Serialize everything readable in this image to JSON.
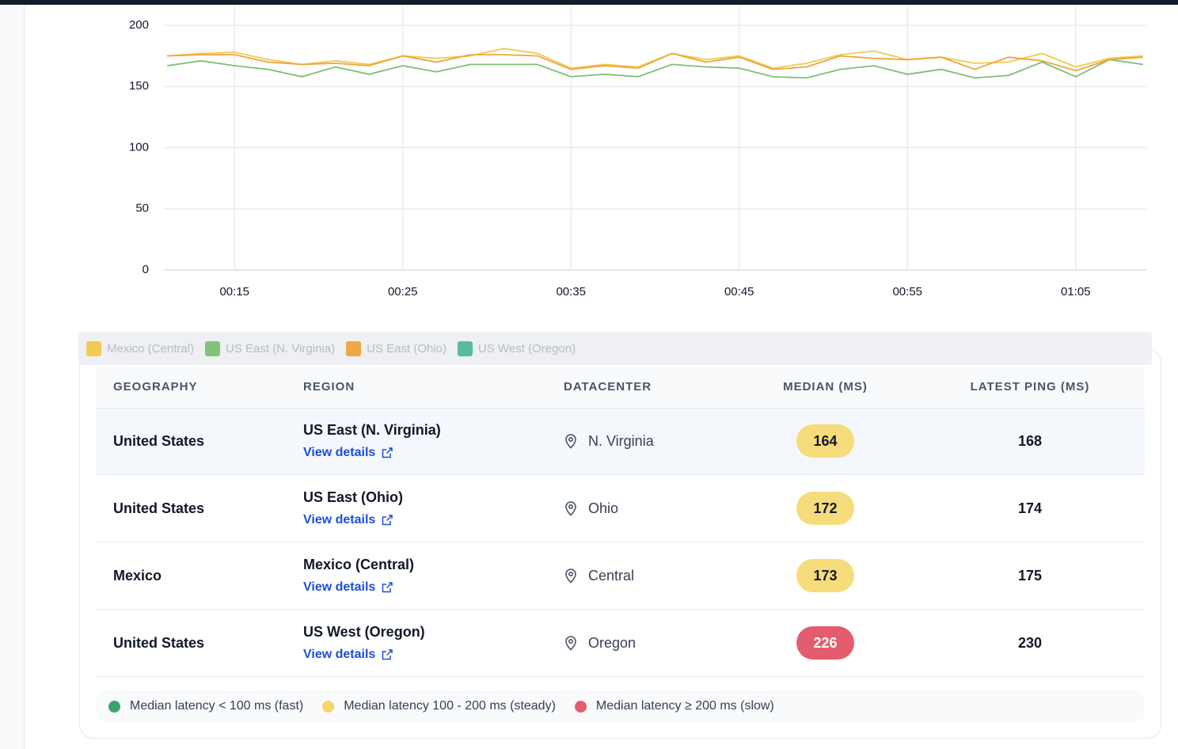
{
  "chart_data": {
    "type": "line",
    "x": [
      11,
      13,
      15,
      17,
      19,
      21,
      23,
      25,
      27,
      29,
      31,
      33,
      35,
      37,
      39,
      41,
      43,
      45,
      47,
      49,
      51,
      53,
      55,
      57,
      59,
      61,
      63,
      65,
      67,
      69
    ],
    "xlim": [
      10.8,
      69.2
    ],
    "xticks": [
      {
        "value": 15,
        "label": "00:15"
      },
      {
        "value": 25,
        "label": "00:25"
      },
      {
        "value": 35,
        "label": "00:35"
      },
      {
        "value": 45,
        "label": "00:45"
      },
      {
        "value": 55,
        "label": "00:55"
      },
      {
        "value": 65,
        "label": "01:05"
      }
    ],
    "ylim": [
      0,
      200
    ],
    "yticks": [
      0,
      50,
      100,
      150,
      200
    ],
    "grid": true,
    "series": [
      {
        "name": "Mexico (Central)",
        "color": "#f2c94c",
        "values": [
          175,
          177,
          178,
          172,
          168,
          171,
          168,
          175,
          173,
          175,
          181,
          177,
          165,
          168,
          166,
          177,
          172,
          175,
          165,
          169,
          176,
          179,
          172,
          174,
          169,
          170,
          177,
          166,
          173,
          175
        ]
      },
      {
        "name": "US East (N. Virginia)",
        "color": "#7dbf75",
        "values": [
          167,
          171,
          167,
          164,
          158,
          166,
          160,
          167,
          162,
          168,
          168,
          168,
          158,
          160,
          158,
          168,
          166,
          165,
          158,
          157,
          164,
          167,
          160,
          164,
          157,
          159,
          170,
          158,
          172,
          168
        ]
      },
      {
        "name": "US East (Ohio)",
        "color": "#f0a43a",
        "values": [
          175,
          176,
          176,
          170,
          168,
          169,
          167,
          175,
          170,
          176,
          176,
          175,
          164,
          167,
          165,
          177,
          170,
          174,
          164,
          166,
          175,
          173,
          172,
          174,
          164,
          174,
          171,
          163,
          172,
          174
        ]
      },
      {
        "name": "US West (Oregon)",
        "color": "#4fb89a",
        "values": [
          null,
          null,
          null,
          null,
          null,
          null,
          null,
          null,
          null,
          null,
          null,
          null,
          null,
          null,
          null,
          null,
          null,
          null,
          null,
          null,
          null,
          null,
          null,
          null,
          null,
          null,
          null,
          null,
          null,
          null
        ]
      }
    ]
  },
  "table": {
    "columns": [
      "Geography",
      "Region",
      "Datacenter",
      "Median (ms)",
      "Latest ping (ms)"
    ],
    "rows": [
      {
        "geography": "United States",
        "region": "US East (N. Virginia)",
        "link": "View details",
        "datacenter": "N. Virginia",
        "median": 164,
        "median_color": "#f6dc7a",
        "latest_ping": 168
      },
      {
        "geography": "United States",
        "region": "US East (Ohio)",
        "link": "View details",
        "datacenter": "Ohio",
        "median": 172,
        "median_color": "#f6dc7a",
        "latest_ping": 174
      },
      {
        "geography": "Mexico",
        "region": "Mexico (Central)",
        "link": "View details",
        "datacenter": "Central",
        "median": 173,
        "median_color": "#f6dc7a",
        "latest_ping": 175
      },
      {
        "geography": "United States",
        "region": "US West (Oregon)",
        "link": "View details",
        "datacenter": "Oregon",
        "median": 226,
        "median_color": "#e35d6e",
        "latest_ping": 230
      }
    ]
  },
  "footer_legend": [
    {
      "color": "#3ba36b",
      "label": "Median latency < 100 ms (fast)"
    },
    {
      "color": "#f6d56a",
      "label": "Median latency 100 - 200 ms (steady)"
    },
    {
      "color": "#e35d6e",
      "label": "Median latency ≥ 200 ms (slow)"
    }
  ]
}
